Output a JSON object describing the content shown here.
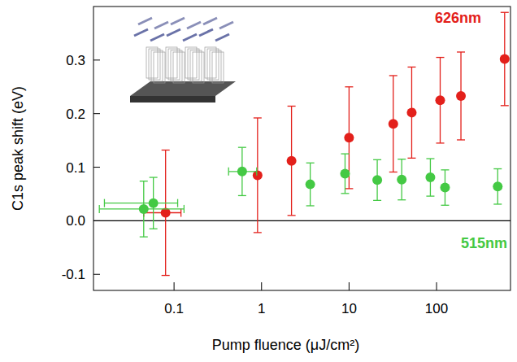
{
  "chart_data": {
    "type": "scatter",
    "x_label": "Pump fluence (μJ/cm²)",
    "y_label": "C1s peak shift (eV)",
    "log": "x",
    "xlim": [
      0.012,
      700
    ],
    "ylim": [
      -0.13,
      0.4
    ],
    "xticks": [
      0.1,
      1,
      10,
      100
    ],
    "yticks": [
      -0.1,
      {
        "value": 0,
        "label": "0.0"
      },
      0.1,
      0.2,
      0.3
    ],
    "hline": 0,
    "series": [
      {
        "name": "626nm",
        "color": "#e3201b",
        "marker": "circle",
        "x": [
          0.08,
          0.9,
          2.2,
          10,
          32,
          52,
          110,
          190,
          600
        ],
        "values": [
          0.015,
          0.085,
          0.112,
          0.155,
          0.181,
          0.202,
          0.225,
          0.233,
          0.302
        ],
        "errors": [
          0.117,
          0.107,
          0.102,
          0.095,
          0.09,
          0.085,
          0.08,
          0.082,
          0.087
        ],
        "x_low": [
          0.045,
          null,
          null,
          null,
          null,
          null,
          null,
          null,
          null
        ],
        "x_high": [
          0.12,
          null,
          null,
          null,
          null,
          null,
          null,
          null,
          null
        ]
      },
      {
        "name": "515nm",
        "color": "#44c944",
        "marker": "circle",
        "x": [
          0.045,
          0.058,
          0.6,
          3.6,
          9,
          21,
          40,
          85,
          125,
          500
        ],
        "values": [
          0.022,
          0.033,
          0.092,
          0.068,
          0.088,
          0.076,
          0.077,
          0.081,
          0.062,
          0.064
        ],
        "errors": [
          0.052,
          0.048,
          0.045,
          0.04,
          0.037,
          0.038,
          0.038,
          0.035,
          0.033,
          0.033
        ],
        "x_low": [
          0.014,
          0.016,
          0.42,
          null,
          null,
          null,
          null,
          null,
          null,
          null
        ],
        "x_high": [
          0.13,
          0.11,
          0.88,
          null,
          null,
          null,
          null,
          null,
          null,
          null
        ]
      }
    ]
  }
}
